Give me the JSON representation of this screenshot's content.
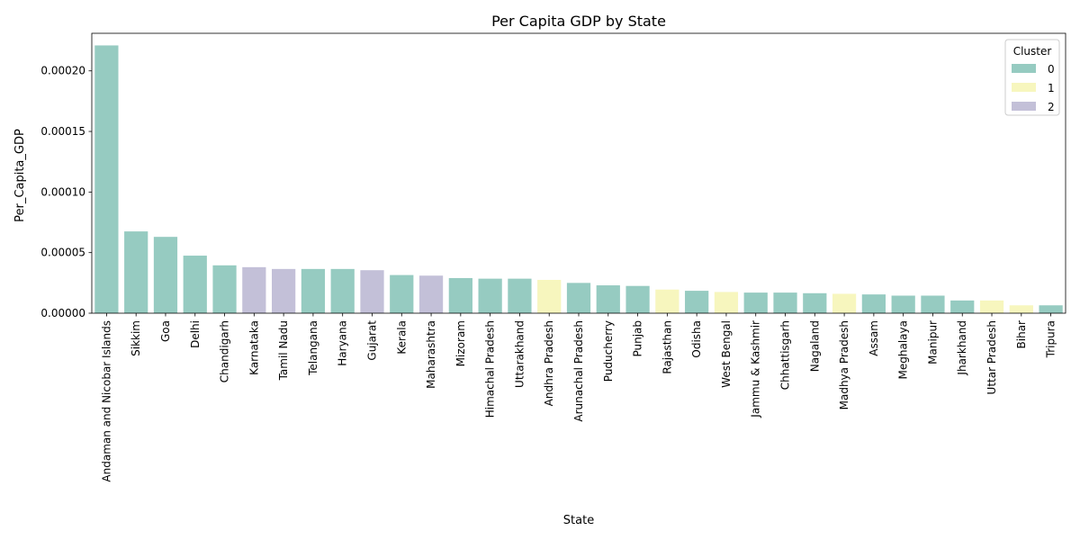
{
  "chart_data": {
    "type": "bar",
    "title": "Per Capita GDP by State",
    "xlabel": "State",
    "ylabel": "Per_Capita_GDP",
    "ylim": [
      0,
      0.000231
    ],
    "yticks": [
      "0.00000",
      "0.00005",
      "0.00010",
      "0.00015",
      "0.00020"
    ],
    "ytick_values": [
      0,
      5e-05,
      0.0001,
      0.00015,
      0.0002
    ],
    "grid": false,
    "legend": {
      "title": "Cluster",
      "placement": "top-right",
      "entries": [
        {
          "label": "0",
          "color": "#96cbc1"
        },
        {
          "label": "1",
          "color": "#f7f6be"
        },
        {
          "label": "2",
          "color": "#c3c0d8"
        }
      ]
    },
    "categories": [
      "Andaman and Nicobar Islands",
      "Sikkim",
      "Goa",
      "Delhi",
      "Chandigarh",
      "Karnataka",
      "Tamil Nadu",
      "Telangana",
      "Haryana",
      "Gujarat",
      "Kerala",
      "Maharashtra",
      "Mizoram",
      "Himachal Pradesh",
      "Uttarakhand",
      "Andhra Pradesh",
      "Arunachal Pradesh",
      "Puducherry",
      "Punjab",
      "Rajasthan",
      "Odisha",
      "West Bengal",
      "Jammu & Kashmir",
      "Chhattisgarh",
      "Nagaland",
      "Madhya Pradesh",
      "Assam",
      "Meghalaya",
      "Manipur",
      "Jharkhand",
      "Uttar Pradesh",
      "Bihar",
      "Tripura"
    ],
    "values": [
      0.000221,
      6.75e-05,
      6.3e-05,
      4.75e-05,
      3.95e-05,
      3.8e-05,
      3.65e-05,
      3.65e-05,
      3.65e-05,
      3.55e-05,
      3.15e-05,
      3.1e-05,
      2.9e-05,
      2.85e-05,
      2.85e-05,
      2.75e-05,
      2.5e-05,
      2.3e-05,
      2.25e-05,
      1.95e-05,
      1.85e-05,
      1.75e-05,
      1.7e-05,
      1.7e-05,
      1.65e-05,
      1.6e-05,
      1.55e-05,
      1.45e-05,
      1.45e-05,
      1.05e-05,
      1.05e-05,
      6.5e-06,
      6.5e-06
    ],
    "clusters": [
      0,
      0,
      0,
      0,
      0,
      2,
      2,
      0,
      0,
      2,
      0,
      2,
      0,
      0,
      0,
      1,
      0,
      0,
      0,
      1,
      0,
      1,
      0,
      0,
      0,
      1,
      0,
      0,
      0,
      0,
      1,
      1,
      0
    ]
  }
}
